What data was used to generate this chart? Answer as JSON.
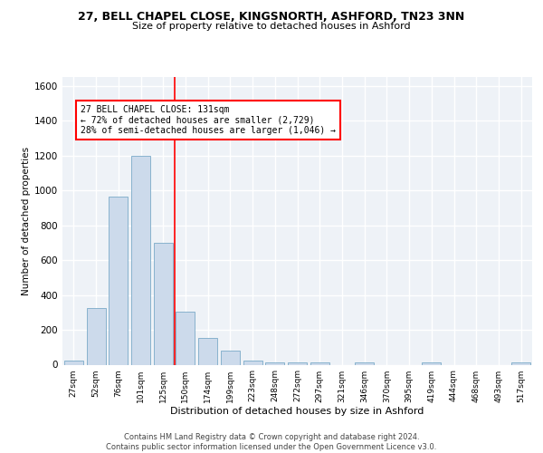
{
  "title1": "27, BELL CHAPEL CLOSE, KINGSNORTH, ASHFORD, TN23 3NN",
  "title2": "Size of property relative to detached houses in Ashford",
  "xlabel": "Distribution of detached houses by size in Ashford",
  "ylabel": "Number of detached properties",
  "categories": [
    "27sqm",
    "52sqm",
    "76sqm",
    "101sqm",
    "125sqm",
    "150sqm",
    "174sqm",
    "199sqm",
    "223sqm",
    "248sqm",
    "272sqm",
    "297sqm",
    "321sqm",
    "346sqm",
    "370sqm",
    "395sqm",
    "419sqm",
    "444sqm",
    "468sqm",
    "493sqm",
    "517sqm"
  ],
  "values": [
    25,
    325,
    965,
    1200,
    700,
    305,
    155,
    80,
    25,
    15,
    15,
    15,
    0,
    15,
    0,
    0,
    15,
    0,
    0,
    0,
    15
  ],
  "bar_color": "#ccdaeb",
  "bar_edge_color": "#7aaac8",
  "vline_x": 4.5,
  "vline_color": "red",
  "annotation_text": "27 BELL CHAPEL CLOSE: 131sqm\n← 72% of detached houses are smaller (2,729)\n28% of semi-detached houses are larger (1,046) →",
  "ylim": [
    0,
    1650
  ],
  "yticks": [
    0,
    200,
    400,
    600,
    800,
    1000,
    1200,
    1400,
    1600
  ],
  "footer": "Contains HM Land Registry data © Crown copyright and database right 2024.\nContains public sector information licensed under the Open Government Licence v3.0.",
  "bg_color": "#eef2f7",
  "grid_color": "white"
}
